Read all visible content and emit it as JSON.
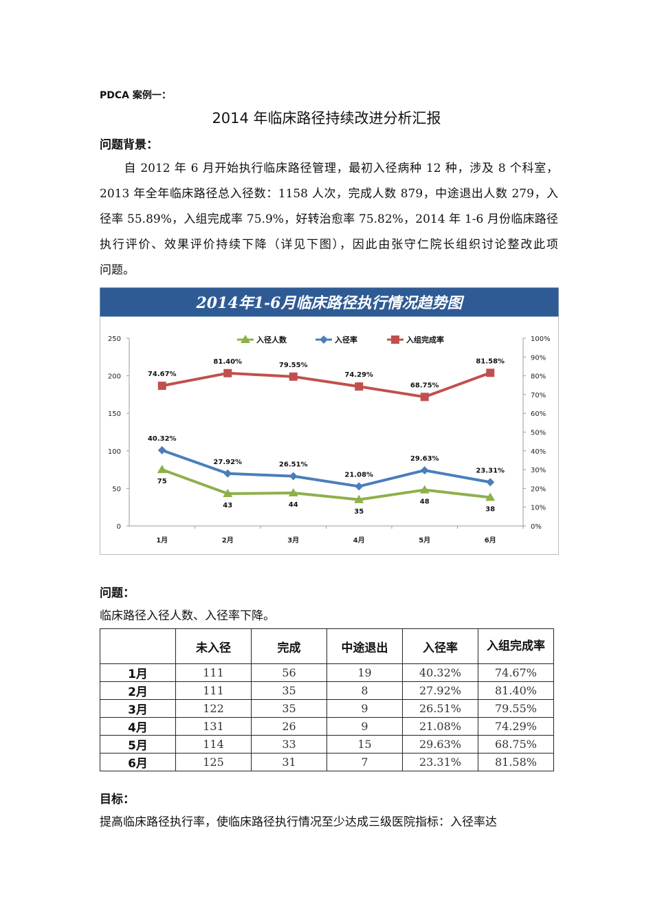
{
  "doc": {
    "case_label": "PDCA 案例一：",
    "title": "2014 年临床路径持续改进分析汇报",
    "background_heading": "问题背景：",
    "background_lines": [
      "　　自 2012 年 6 月开始执行临床路径管理，最初入径病种 12 种，涉及 8 个科室，",
      "2013 年全年临床路径总入径数：1158 人次，完成人数 879，中途退出人数 279，入",
      "径率 55.89%，入组完成率 75.9%，好转治愈率 75.82%，2014 年 1-6 月份临床路径",
      "执行评价、效果评价持续下降（详见下图），因此由张守仁院长组织讨论整改此项",
      "问题。"
    ],
    "problem_heading": "问题：",
    "problem_text": "临床路径入径人数、入径率下降。",
    "goal_heading": "目标：",
    "goal_text": "提高临床路径执行率，使临床路径执行情况至少达成三级医院指标：入径率达"
  },
  "chart_data": {
    "type": "line",
    "title": "2014年1-6月临床路径执行情况趋势图",
    "title_bg": "#2f5b95",
    "categories": [
      "1月",
      "2月",
      "3月",
      "4月",
      "5月",
      "6月"
    ],
    "y_left": {
      "range": [
        0,
        250
      ],
      "ticks": [
        "0",
        "50",
        "100",
        "150",
        "200",
        "250"
      ]
    },
    "y_right": {
      "range": [
        0,
        100
      ],
      "ticks": [
        "0%",
        "10%",
        "20%",
        "30%",
        "40%",
        "50%",
        "60%",
        "70%",
        "80%",
        "90%",
        "100%"
      ]
    },
    "legend_position": "top",
    "grid": false,
    "series": [
      {
        "name": "入径人数",
        "axis": "left",
        "marker": "triangle",
        "color": "#8db04a",
        "values": [
          75,
          43,
          44,
          35,
          48,
          38
        ],
        "labels": [
          "75",
          "43",
          "44",
          "35",
          "48",
          "38"
        ]
      },
      {
        "name": "入径率",
        "axis": "right",
        "marker": "diamond",
        "color": "#4a7ebb",
        "values": [
          40.32,
          27.92,
          26.51,
          21.08,
          29.63,
          23.31
        ],
        "labels": [
          "40.32%",
          "27.92%",
          "26.51%",
          "21.08%",
          "29.63%",
          "23.31%"
        ]
      },
      {
        "name": "入组完成率",
        "axis": "right",
        "marker": "square",
        "color": "#c0504d",
        "values": [
          74.67,
          81.4,
          79.55,
          74.29,
          68.75,
          81.58
        ],
        "labels": [
          "74.67%",
          "81.40%",
          "79.55%",
          "74.29%",
          "68.75%",
          "81.58%"
        ]
      }
    ]
  },
  "table": {
    "headers": [
      "",
      "未入径",
      "完成",
      "中途退出",
      "入径率",
      "入组完成率"
    ],
    "rows": [
      [
        "1月",
        "111",
        "56",
        "19",
        "40.32%",
        "74.67%"
      ],
      [
        "2月",
        "111",
        "35",
        "8",
        "27.92%",
        "81.40%"
      ],
      [
        "3月",
        "122",
        "35",
        "9",
        "26.51%",
        "79.55%"
      ],
      [
        "4月",
        "131",
        "26",
        "9",
        "21.08%",
        "74.29%"
      ],
      [
        "5月",
        "114",
        "33",
        "15",
        "29.63%",
        "68.75%"
      ],
      [
        "6月",
        "125",
        "31",
        "7",
        "23.31%",
        "81.58%"
      ]
    ]
  }
}
